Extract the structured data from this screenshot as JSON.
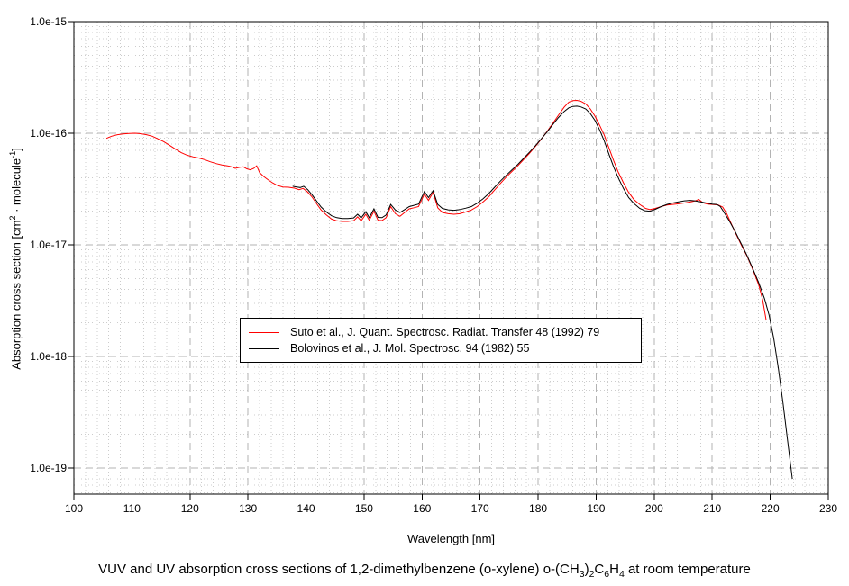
{
  "figure": {
    "x_axis_label": "Wavelength [nm]",
    "y_axis_label_parts": [
      {
        "t": "Absorption cross section [cm"
      },
      {
        "t": "2",
        "sup": true
      },
      {
        "t": " · molecule"
      },
      {
        "t": "-1",
        "sup": true
      },
      {
        "t": "]"
      }
    ],
    "caption_parts": [
      {
        "t": "VUV and UV absorption cross sections of 1,2-dimethylbenzene (o-xylene) o-(CH"
      },
      {
        "t": "3",
        "sub": true
      },
      {
        "t": ")"
      },
      {
        "t": "2",
        "sub": true
      },
      {
        "t": "C"
      },
      {
        "t": "6",
        "sub": true
      },
      {
        "t": "H"
      },
      {
        "t": "4",
        "sub": true
      },
      {
        "t": " at room temperature"
      }
    ]
  },
  "chart_data": {
    "type": "line",
    "title": "VUV and UV absorption cross sections of 1,2-dimethylbenzene (o-xylene) o-(CH3)2C6H4 at room temperature",
    "xlabel": "Wavelength [nm]",
    "ylabel": "Absorption cross section [cm2 · molecule-1]",
    "xlim": [
      100,
      230
    ],
    "ylim": [
      5.83e-20,
      1e-15
    ],
    "y_scale": "log",
    "grid": {
      "major_color": "#b3b3b3",
      "minor_color": "#cccccc",
      "x_minor_step_nm": 2
    },
    "legend_position": "center",
    "x_ticks": [
      100,
      110,
      120,
      130,
      140,
      150,
      160,
      170,
      180,
      190,
      200,
      210,
      220,
      230
    ],
    "y_ticks": [
      {
        "label": "1.0e-15",
        "value": 1e-15
      },
      {
        "label": "1.0e-16",
        "value": 1e-16
      },
      {
        "label": "1.0e-17",
        "value": 1e-17
      },
      {
        "label": "1.0e-18",
        "value": 1e-18
      },
      {
        "label": "1.0e-19",
        "value": 1e-19
      }
    ],
    "series": [
      {
        "name": "Suto et al., J. Quant. Spectrosc. Radiat. Transfer 48 (1992) 79",
        "color": "#ff0000",
        "points": [
          [
            105.6,
            9e-17
          ],
          [
            106.5,
            9.4e-17
          ],
          [
            107.5,
            9.7e-17
          ],
          [
            108.5,
            9.85e-17
          ],
          [
            109.5,
            9.95e-17
          ],
          [
            110.5,
            1e-16
          ],
          [
            111.5,
            9.9e-17
          ],
          [
            112.5,
            9.7e-17
          ],
          [
            113.5,
            9.4e-17
          ],
          [
            114.5,
            8.9e-17
          ],
          [
            115.5,
            8.4e-17
          ],
          [
            116.5,
            7.8e-17
          ],
          [
            117.5,
            7.2e-17
          ],
          [
            118.5,
            6.7e-17
          ],
          [
            119.5,
            6.35e-17
          ],
          [
            120.5,
            6.15e-17
          ],
          [
            121.5,
            6e-17
          ],
          [
            122.5,
            5.8e-17
          ],
          [
            123.5,
            5.55e-17
          ],
          [
            124.5,
            5.35e-17
          ],
          [
            125.5,
            5.2e-17
          ],
          [
            126.5,
            5.1e-17
          ],
          [
            127.2,
            5e-17
          ],
          [
            127.8,
            4.85e-17
          ],
          [
            128.5,
            4.95e-17
          ],
          [
            129.2,
            5e-17
          ],
          [
            129.8,
            4.8e-17
          ],
          [
            130.4,
            4.7e-17
          ],
          [
            131.0,
            4.85e-17
          ],
          [
            131.5,
            5.1e-17
          ],
          [
            132.0,
            4.45e-17
          ],
          [
            132.7,
            4.1e-17
          ],
          [
            133.4,
            3.85e-17
          ],
          [
            134.2,
            3.6e-17
          ],
          [
            135.0,
            3.42e-17
          ],
          [
            136.0,
            3.3e-17
          ],
          [
            137.0,
            3.28e-17
          ],
          [
            138.0,
            3.22e-17
          ],
          [
            138.8,
            3.12e-17
          ],
          [
            139.5,
            3.2e-17
          ],
          [
            140.2,
            3e-17
          ],
          [
            141.0,
            2.7e-17
          ],
          [
            141.8,
            2.35e-17
          ],
          [
            142.6,
            2.05e-17
          ],
          [
            143.5,
            1.85e-17
          ],
          [
            144.4,
            1.7e-17
          ],
          [
            145.3,
            1.64e-17
          ],
          [
            146.2,
            1.62e-17
          ],
          [
            147.2,
            1.62e-17
          ],
          [
            148.2,
            1.64e-17
          ],
          [
            148.9,
            1.78e-17
          ],
          [
            149.5,
            1.64e-17
          ],
          [
            150.3,
            1.88e-17
          ],
          [
            150.9,
            1.66e-17
          ],
          [
            151.7,
            2e-17
          ],
          [
            152.4,
            1.66e-17
          ],
          [
            153.1,
            1.65e-17
          ],
          [
            153.8,
            1.75e-17
          ],
          [
            154.6,
            2.2e-17
          ],
          [
            155.4,
            1.9e-17
          ],
          [
            156.2,
            1.8e-17
          ],
          [
            157.0,
            1.95e-17
          ],
          [
            157.8,
            2.1e-17
          ],
          [
            158.6,
            2.15e-17
          ],
          [
            159.4,
            2.2e-17
          ],
          [
            160.4,
            2.85e-17
          ],
          [
            161.1,
            2.5e-17
          ],
          [
            161.9,
            2.95e-17
          ],
          [
            162.7,
            2.15e-17
          ],
          [
            163.5,
            1.95e-17
          ],
          [
            164.5,
            1.9e-17
          ],
          [
            165.5,
            1.88e-17
          ],
          [
            166.5,
            1.9e-17
          ],
          [
            167.5,
            1.97e-17
          ],
          [
            168.5,
            2.05e-17
          ],
          [
            169.5,
            2.2e-17
          ],
          [
            170.5,
            2.42e-17
          ],
          [
            171.5,
            2.7e-17
          ],
          [
            172.5,
            3.1e-17
          ],
          [
            173.5,
            3.55e-17
          ],
          [
            174.5,
            4.05e-17
          ],
          [
            175.5,
            4.55e-17
          ],
          [
            176.5,
            5.1e-17
          ],
          [
            177.5,
            5.8e-17
          ],
          [
            178.5,
            6.6e-17
          ],
          [
            179.5,
            7.6e-17
          ],
          [
            180.5,
            8.8e-17
          ],
          [
            181.5,
            1.03e-16
          ],
          [
            182.5,
            1.22e-16
          ],
          [
            183.5,
            1.45e-16
          ],
          [
            184.5,
            1.72e-16
          ],
          [
            185.3,
            1.9e-16
          ],
          [
            186.0,
            1.96e-16
          ],
          [
            186.7,
            1.97e-16
          ],
          [
            187.4,
            1.93e-16
          ],
          [
            188.2,
            1.83e-16
          ],
          [
            189.0,
            1.65e-16
          ],
          [
            189.8,
            1.42e-16
          ],
          [
            190.6,
            1.18e-16
          ],
          [
            191.4,
            9.6e-17
          ],
          [
            192.2,
            7.4e-17
          ],
          [
            193.0,
            5.7e-17
          ],
          [
            193.8,
            4.5e-17
          ],
          [
            194.7,
            3.6e-17
          ],
          [
            195.6,
            2.95e-17
          ],
          [
            196.5,
            2.55e-17
          ],
          [
            197.5,
            2.3e-17
          ],
          [
            198.5,
            2.12e-17
          ],
          [
            199.3,
            2.07e-17
          ],
          [
            200.2,
            2.12e-17
          ],
          [
            201.2,
            2.2e-17
          ],
          [
            202.2,
            2.27e-17
          ],
          [
            203.2,
            2.3e-17
          ],
          [
            204.2,
            2.33e-17
          ],
          [
            205.2,
            2.37e-17
          ],
          [
            206.2,
            2.42e-17
          ],
          [
            207.0,
            2.47e-17
          ],
          [
            207.7,
            2.55e-17
          ],
          [
            208.4,
            2.38e-17
          ],
          [
            209.2,
            2.32e-17
          ],
          [
            210.0,
            2.3e-17
          ],
          [
            211.0,
            2.28e-17
          ],
          [
            211.8,
            2.18e-17
          ],
          [
            212.5,
            1.9e-17
          ],
          [
            213.2,
            1.58e-17
          ],
          [
            214.0,
            1.28e-17
          ],
          [
            215.0,
            1e-17
          ],
          [
            216.0,
            7.9e-18
          ],
          [
            217.0,
            6e-18
          ],
          [
            218.0,
            4.4e-18
          ],
          [
            218.7,
            3.2e-18
          ],
          [
            219.3,
            2.1e-18
          ]
        ]
      },
      {
        "name": "Bolovinos et al., J. Mol. Spectrosc. 94 (1982) 55",
        "color": "#000000",
        "points": [
          [
            137.7,
            3.35e-17
          ],
          [
            138.4,
            3.3e-17
          ],
          [
            139.0,
            3.26e-17
          ],
          [
            139.6,
            3.35e-17
          ],
          [
            140.3,
            3.12e-17
          ],
          [
            141.0,
            2.82e-17
          ],
          [
            141.8,
            2.48e-17
          ],
          [
            142.6,
            2.18e-17
          ],
          [
            143.5,
            1.97e-17
          ],
          [
            144.4,
            1.82e-17
          ],
          [
            145.3,
            1.75e-17
          ],
          [
            146.2,
            1.72e-17
          ],
          [
            147.2,
            1.72e-17
          ],
          [
            148.2,
            1.74e-17
          ],
          [
            148.9,
            1.88e-17
          ],
          [
            149.5,
            1.74e-17
          ],
          [
            150.3,
            1.98e-17
          ],
          [
            150.9,
            1.75e-17
          ],
          [
            151.7,
            2.1e-17
          ],
          [
            152.4,
            1.76e-17
          ],
          [
            153.1,
            1.75e-17
          ],
          [
            153.8,
            1.85e-17
          ],
          [
            154.6,
            2.3e-17
          ],
          [
            155.4,
            2.05e-17
          ],
          [
            156.2,
            1.95e-17
          ],
          [
            157.0,
            2.07e-17
          ],
          [
            157.8,
            2.2e-17
          ],
          [
            158.6,
            2.26e-17
          ],
          [
            159.4,
            2.32e-17
          ],
          [
            160.4,
            3e-17
          ],
          [
            161.1,
            2.65e-17
          ],
          [
            161.9,
            3.05e-17
          ],
          [
            162.7,
            2.3e-17
          ],
          [
            163.5,
            2.12e-17
          ],
          [
            164.5,
            2.06e-17
          ],
          [
            165.5,
            2.04e-17
          ],
          [
            166.5,
            2.07e-17
          ],
          [
            167.5,
            2.13e-17
          ],
          [
            168.5,
            2.2e-17
          ],
          [
            169.5,
            2.36e-17
          ],
          [
            170.5,
            2.58e-17
          ],
          [
            171.5,
            2.88e-17
          ],
          [
            172.5,
            3.28e-17
          ],
          [
            173.5,
            3.72e-17
          ],
          [
            174.5,
            4.2e-17
          ],
          [
            175.5,
            4.7e-17
          ],
          [
            176.5,
            5.25e-17
          ],
          [
            177.5,
            5.95e-17
          ],
          [
            178.5,
            6.75e-17
          ],
          [
            179.5,
            7.7e-17
          ],
          [
            180.5,
            8.85e-17
          ],
          [
            181.5,
            1.02e-16
          ],
          [
            182.5,
            1.19e-16
          ],
          [
            183.5,
            1.38e-16
          ],
          [
            184.5,
            1.57e-16
          ],
          [
            185.3,
            1.69e-16
          ],
          [
            186.0,
            1.74e-16
          ],
          [
            186.7,
            1.75e-16
          ],
          [
            187.4,
            1.72e-16
          ],
          [
            188.2,
            1.65e-16
          ],
          [
            189.0,
            1.5e-16
          ],
          [
            189.8,
            1.3e-16
          ],
          [
            190.6,
            1.07e-16
          ],
          [
            191.4,
            8.5e-17
          ],
          [
            192.2,
            6.5e-17
          ],
          [
            193.0,
            5e-17
          ],
          [
            193.8,
            4e-17
          ],
          [
            194.7,
            3.2e-17
          ],
          [
            195.6,
            2.65e-17
          ],
          [
            196.5,
            2.35e-17
          ],
          [
            197.5,
            2.12e-17
          ],
          [
            198.4,
            2.02e-17
          ],
          [
            199.3,
            2e-17
          ],
          [
            200.2,
            2.08e-17
          ],
          [
            201.2,
            2.2e-17
          ],
          [
            202.2,
            2.3e-17
          ],
          [
            203.2,
            2.37e-17
          ],
          [
            204.2,
            2.43e-17
          ],
          [
            205.2,
            2.48e-17
          ],
          [
            206.2,
            2.5e-17
          ],
          [
            207.0,
            2.48e-17
          ],
          [
            208.0,
            2.43e-17
          ],
          [
            209.0,
            2.37e-17
          ],
          [
            210.0,
            2.32e-17
          ],
          [
            210.8,
            2.3e-17
          ],
          [
            211.4,
            2.2e-17
          ],
          [
            212.0,
            1.97e-17
          ],
          [
            213.0,
            1.62e-17
          ],
          [
            214.0,
            1.3e-17
          ],
          [
            215.0,
            1.02e-17
          ],
          [
            216.0,
            8e-18
          ],
          [
            217.0,
            6.1e-18
          ],
          [
            218.0,
            4.6e-18
          ],
          [
            219.0,
            3.3e-18
          ],
          [
            219.8,
            2.35e-18
          ],
          [
            220.6,
            1.45e-18
          ],
          [
            221.4,
            7.8e-19
          ],
          [
            222.2,
            3.8e-19
          ],
          [
            223.0,
            1.75e-19
          ],
          [
            223.8,
            8e-20
          ]
        ]
      }
    ]
  }
}
